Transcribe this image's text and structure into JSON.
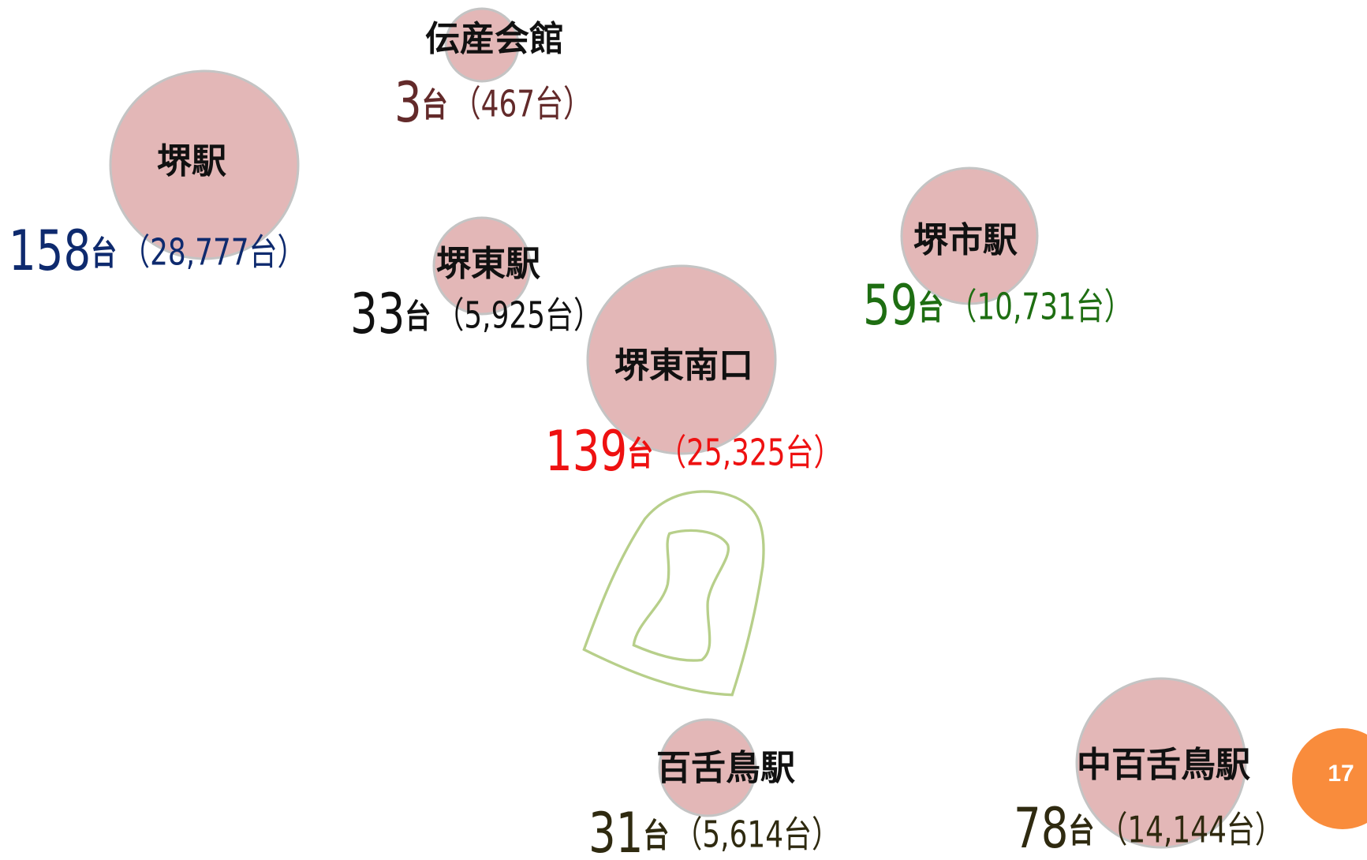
{
  "stations": [
    {
      "name": "伝産会館",
      "count": "3",
      "unit": "台",
      "total": "（467台）"
    },
    {
      "name": "堺駅",
      "count": "158",
      "unit": "台",
      "total": "（28,777台）"
    },
    {
      "name": "堺東駅",
      "count": "33",
      "unit": "台",
      "total": "（5,925台）"
    },
    {
      "name": "堺東南口",
      "count": "139",
      "unit": "台",
      "total": "（25,325台）"
    },
    {
      "name": "堺市駅",
      "count": "59",
      "unit": "台",
      "total": "（10,731台）"
    },
    {
      "name": "百舌鳥駅",
      "count": "31",
      "unit": "台",
      "total": "（5,614台）"
    },
    {
      "name": "中百舌鳥駅",
      "count": "78",
      "unit": "台",
      "total": "（14,144台）"
    }
  ],
  "page_number": "17"
}
